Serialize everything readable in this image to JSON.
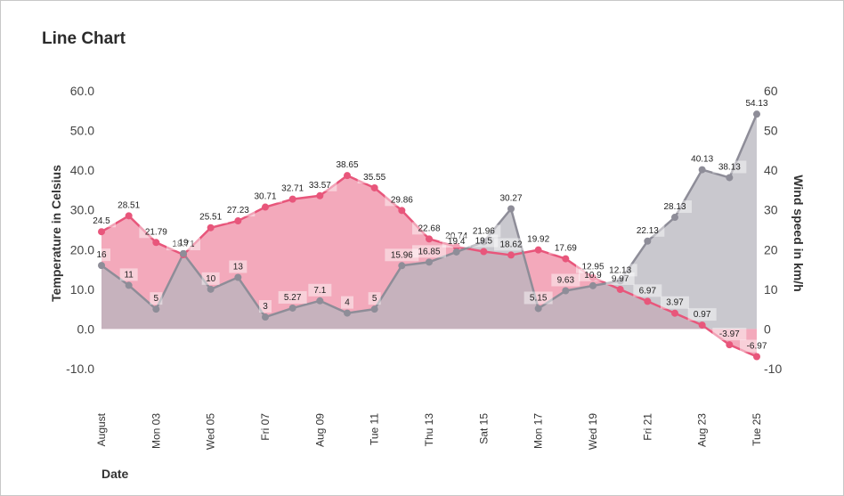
{
  "chart_data": {
    "type": "area",
    "title": "Line Chart",
    "xlabel": "Date",
    "ylabel_left": "Temperature in Celsius",
    "ylabel_right": "Wind speed in km/h",
    "ylim_left": [
      -10,
      60
    ],
    "ylim_right": [
      -10,
      60
    ],
    "left_ticks": [
      "60.0",
      "50.0",
      "40.0",
      "30.0",
      "20.0",
      "10.0",
      "0.0",
      "-10.0"
    ],
    "left_tick_values": [
      60,
      50,
      40,
      30,
      20,
      10,
      0,
      -10
    ],
    "right_ticks": [
      "60",
      "50",
      "40",
      "30",
      "20",
      "10",
      "0",
      "-10"
    ],
    "right_tick_values": [
      60,
      50,
      40,
      30,
      20,
      10,
      0,
      -10
    ],
    "x": [
      "2024-08-01",
      "2024-08-02",
      "2024-08-03",
      "2024-08-04",
      "2024-08-05",
      "2024-08-06",
      "2024-08-07",
      "2024-08-08",
      "2024-08-09",
      "2024-08-10",
      "2024-08-11",
      "2024-08-12",
      "2024-08-13",
      "2024-08-14",
      "2024-08-15",
      "2024-08-16",
      "2024-08-17",
      "2024-08-18",
      "2024-08-19",
      "2024-08-20",
      "2024-08-21",
      "2024-08-22",
      "2024-08-23",
      "2024-08-24",
      "2024-08-25"
    ],
    "x_tick_labels": [
      {
        "date": "2024-08-01",
        "label": "August"
      },
      {
        "date": "2024-08-03",
        "label": "Mon 03"
      },
      {
        "date": "2024-08-05",
        "label": "Wed 05"
      },
      {
        "date": "2024-08-07",
        "label": "Fri 07"
      },
      {
        "date": "2024-08-09",
        "label": "Aug 09"
      },
      {
        "date": "2024-08-11",
        "label": "Tue 11"
      },
      {
        "date": "2024-08-13",
        "label": "Thu 13"
      },
      {
        "date": "2024-08-15",
        "label": "Sat 15"
      },
      {
        "date": "2024-08-17",
        "label": "Mon 17"
      },
      {
        "date": "2024-08-19",
        "label": "Wed 19"
      },
      {
        "date": "2024-08-21",
        "label": "Fri 21"
      },
      {
        "date": "2024-08-23",
        "label": "Aug 23"
      },
      {
        "date": "2024-08-25",
        "label": "Tue 25"
      }
    ],
    "series": [
      {
        "axis": "left",
        "color": "#e8567b",
        "fill": "#f2a0b4",
        "values": [
          24.5,
          28.51,
          21.79,
          18.71,
          25.51,
          27.23,
          30.71,
          32.71,
          33.57,
          38.65,
          35.55,
          29.86,
          22.68,
          20.74,
          19.5,
          18.62,
          19.92,
          17.69,
          12.95,
          9.97,
          6.97,
          3.97,
          0.97,
          -3.97,
          -6.97
        ],
        "labels": [
          "24.5",
          "28.51",
          "21.79",
          "18.71",
          "25.51",
          "27.23",
          "30.71",
          "32.71",
          "33.57",
          "38.65",
          "35.55",
          "29.86",
          "22.68",
          "20.74",
          "19.5",
          "18.62",
          "19.92",
          "17.69",
          "12.95",
          "9.97",
          "6.97",
          "3.97",
          "0.97",
          "-3.97",
          "-6.97"
        ]
      },
      {
        "axis": "right",
        "color": "#8e8d98",
        "fill": "#b7b6be",
        "values": [
          16,
          11,
          5,
          19,
          10,
          13,
          3,
          5.27,
          7.1,
          4,
          5,
          15.96,
          16.85,
          19.4,
          21.96,
          30.27,
          5.15,
          9.63,
          10.9,
          12.13,
          22.13,
          28.13,
          40.13,
          38.13,
          54.13
        ],
        "labels": [
          "16",
          "11",
          "5",
          "19",
          "10",
          "13",
          "3",
          "5.27",
          "7.1",
          "4",
          "5",
          "15.96",
          "16.85",
          "19.4",
          "21.96",
          "30.27",
          "5.15",
          "9.63",
          "10.9",
          "12.13",
          "22.13",
          "28.13",
          "40.13",
          "38.13",
          "54.13"
        ]
      }
    ]
  }
}
